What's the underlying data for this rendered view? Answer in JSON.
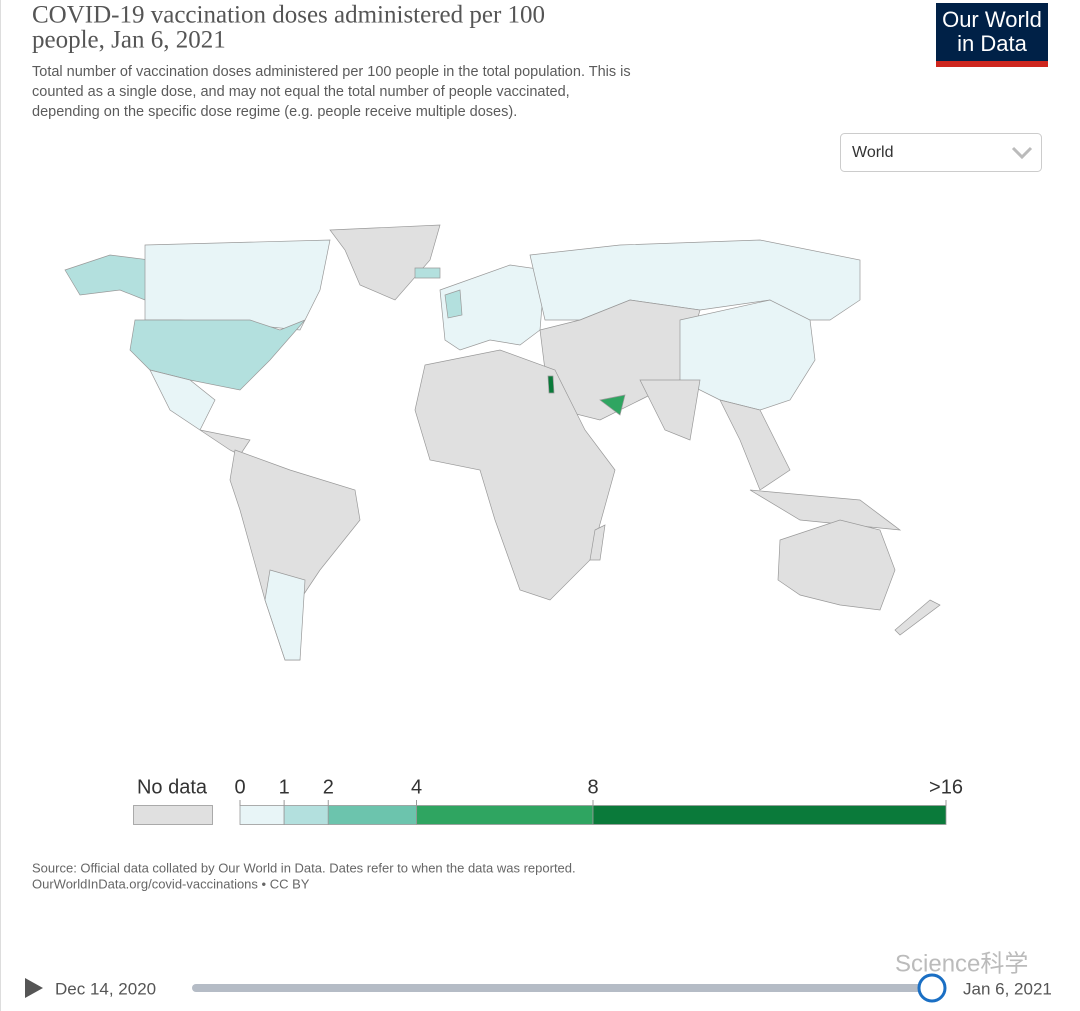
{
  "header": {
    "title": [
      "COVID-19 vaccination doses administered per 100",
      "people, Jan 6, 2021"
    ],
    "subtitle": [
      "Total number of vaccination doses administered per 100 people in the total population. This is",
      "counted as a single dose, and may not equal the total number of people vaccinated,",
      "depending on the specific dose regime (e.g. people receive multiple doses)."
    ],
    "logo": [
      "Our World",
      "in Data"
    ]
  },
  "region_select": "World",
  "legend": {
    "no_data": "No data",
    "no_data_color": "#e0e0e0",
    "bins": [
      0,
      1,
      2,
      4,
      8,
      {
        "value": 16,
        "label": ">16"
      }
    ],
    "colors": [
      "#e8f5f7",
      "#b3e0de",
      "#6cc4ad",
      "#2fa561",
      "#0a7a3a"
    ]
  },
  "footer": {
    "source": "Source: Official data collated by Our World in Data. Dates refer to when the data was reported.",
    "link": "OurWorldInData.org/covid-vaccinations • CC BY"
  },
  "timeline": {
    "start": "Dec 14, 2020",
    "end": "Jan 6, 2021"
  },
  "watermark": "Science科学"
}
